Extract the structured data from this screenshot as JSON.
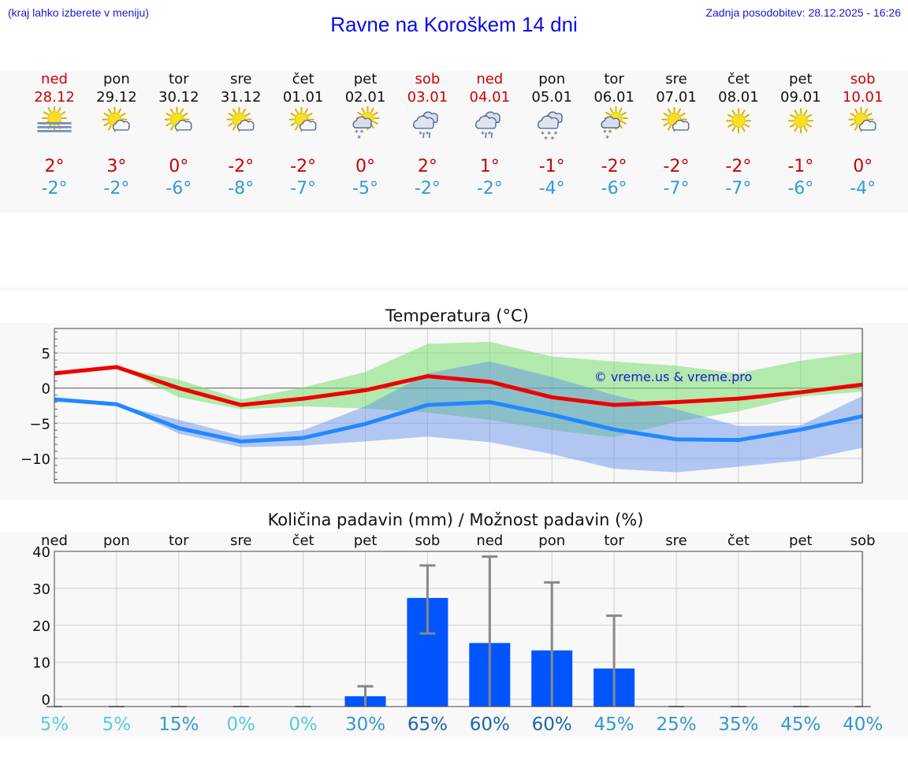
{
  "header": {
    "hint": "(kraj lahko izberete v meniju)",
    "title": "Ravne na Koroškem 14 dni",
    "updated": "Zadnja posodobitev: 28.12.2025 - 16:26"
  },
  "days": [
    {
      "name": "ned",
      "date": "28.12",
      "weekend": true,
      "icon": "fog-sun-icon",
      "tmax": "2°",
      "tmin": "-2°"
    },
    {
      "name": "pon",
      "date": "29.12",
      "weekend": false,
      "icon": "sun-cloud-icon",
      "tmax": "3°",
      "tmin": "-2°"
    },
    {
      "name": "tor",
      "date": "30.12",
      "weekend": false,
      "icon": "sun-cloud-icon",
      "tmax": "0°",
      "tmin": "-6°"
    },
    {
      "name": "sre",
      "date": "31.12",
      "weekend": false,
      "icon": "sun-cloud-icon",
      "tmax": "-2°",
      "tmin": "-8°"
    },
    {
      "name": "čet",
      "date": "01.01",
      "weekend": false,
      "icon": "sun-cloud-icon",
      "tmax": "-2°",
      "tmin": "-7°"
    },
    {
      "name": "pet",
      "date": "02.01",
      "weekend": false,
      "icon": "sun-cloud-snow-icon",
      "tmax": "0°",
      "tmin": "-5°"
    },
    {
      "name": "sob",
      "date": "03.01",
      "weekend": true,
      "icon": "cloud-sleet-icon",
      "tmax": "2°",
      "tmin": "-2°"
    },
    {
      "name": "ned",
      "date": "04.01",
      "weekend": true,
      "icon": "cloud-sleet-icon",
      "tmax": "1°",
      "tmin": "-2°"
    },
    {
      "name": "pon",
      "date": "05.01",
      "weekend": false,
      "icon": "cloud-snow-icon",
      "tmax": "-1°",
      "tmin": "-4°"
    },
    {
      "name": "tor",
      "date": "06.01",
      "weekend": false,
      "icon": "sun-cloud-snow-icon",
      "tmax": "-2°",
      "tmin": "-6°"
    },
    {
      "name": "sre",
      "date": "07.01",
      "weekend": false,
      "icon": "sun-cloud-icon",
      "tmax": "-2°",
      "tmin": "-7°"
    },
    {
      "name": "čet",
      "date": "08.01",
      "weekend": false,
      "icon": "sun-icon",
      "tmax": "-2°",
      "tmin": "-7°"
    },
    {
      "name": "pet",
      "date": "09.01",
      "weekend": false,
      "icon": "sun-icon",
      "tmax": "-1°",
      "tmin": "-6°"
    },
    {
      "name": "sob",
      "date": "10.01",
      "weekend": true,
      "icon": "sun-cloud-icon",
      "tmax": "0°",
      "tmin": "-4°"
    }
  ],
  "colors": {
    "weekend": "#cc0000",
    "weekday": "#111111",
    "tmax": "#cc0000",
    "tmin": "#3399dd",
    "maxLine": "#ee0000",
    "minLine": "#2288ff",
    "bar": "#0055ff",
    "err": "#888888"
  },
  "chart_data": [
    {
      "type": "line",
      "title": "Temperatura (°C)",
      "watermark": "© vreme.us & vreme.pro",
      "ylim": [
        -13.5,
        8.5
      ],
      "yticks": [
        5,
        0,
        -5,
        -10
      ],
      "ytick_labels": [
        "5",
        "0",
        "−5",
        "−10"
      ],
      "x": [
        0,
        1,
        2,
        3,
        4,
        5,
        6,
        7,
        8,
        9,
        10,
        11,
        12,
        13
      ],
      "series": [
        {
          "name": "max",
          "color": "#ee0000",
          "values": [
            2.1,
            3.0,
            0.0,
            -2.4,
            -1.5,
            -0.3,
            1.7,
            0.9,
            -1.3,
            -2.4,
            -2.0,
            -1.5,
            -0.6,
            0.5
          ],
          "band_low": [
            2.1,
            3.0,
            -1.3,
            -3.0,
            -2.6,
            -2.9,
            -3.5,
            -4.5,
            -6.0,
            -7.0,
            -4.8,
            -3.3,
            -1.2,
            -0.5
          ],
          "band_high": [
            2.1,
            3.0,
            1.2,
            -1.6,
            0.1,
            2.3,
            6.3,
            6.6,
            4.5,
            3.8,
            3.2,
            2.1,
            3.9,
            5.1
          ]
        },
        {
          "name": "min",
          "color": "#2288ff",
          "values": [
            -1.6,
            -2.3,
            -5.7,
            -7.6,
            -7.1,
            -5.1,
            -2.4,
            -2.0,
            -3.8,
            -5.9,
            -7.3,
            -7.4,
            -5.9,
            -4.0
          ],
          "band_low": [
            -1.6,
            -2.3,
            -6.5,
            -8.4,
            -8.2,
            -7.6,
            -6.9,
            -7.7,
            -9.4,
            -11.5,
            -12.0,
            -11.2,
            -10.3,
            -8.5
          ],
          "band_high": [
            -1.6,
            -2.3,
            -4.5,
            -6.8,
            -6.0,
            -2.6,
            2.1,
            3.8,
            1.6,
            -1.0,
            -3.0,
            -5.4,
            -5.3,
            -1.1
          ]
        }
      ]
    },
    {
      "type": "bar",
      "title": "Količina padavin (mm) / Možnost padavin (%)",
      "ylim": [
        -2,
        40
      ],
      "yticks": [
        40,
        30,
        20,
        10,
        0
      ],
      "categories": [
        "ned",
        "pon",
        "tor",
        "sre",
        "čet",
        "pet",
        "sob",
        "ned",
        "pon",
        "tor",
        "sre",
        "čet",
        "pet",
        "sob"
      ],
      "values": [
        0,
        0,
        0,
        0,
        0,
        0.8,
        27.4,
        15.2,
        13.2,
        8.3,
        0,
        0,
        0,
        0
      ],
      "err_low": [
        0,
        0,
        0,
        0,
        0,
        0,
        17.8,
        0,
        0,
        0,
        0,
        0,
        0,
        0
      ],
      "err_high": [
        0,
        0,
        0,
        0,
        0,
        3.5,
        36.2,
        38.6,
        31.6,
        22.6,
        0,
        0,
        0,
        0
      ],
      "probability": [
        "5%",
        "5%",
        "15%",
        "0%",
        "0%",
        "30%",
        "65%",
        "60%",
        "60%",
        "45%",
        "25%",
        "35%",
        "45%",
        "40%"
      ],
      "probability_colors": [
        "#55ccdd",
        "#55ccdd",
        "#3399cc",
        "#55ccdd",
        "#55ccdd",
        "#3399cc",
        "#1a66aa",
        "#1a66aa",
        "#1a66aa",
        "#3399cc",
        "#3399cc",
        "#3399cc",
        "#3399cc",
        "#3399cc"
      ]
    }
  ]
}
